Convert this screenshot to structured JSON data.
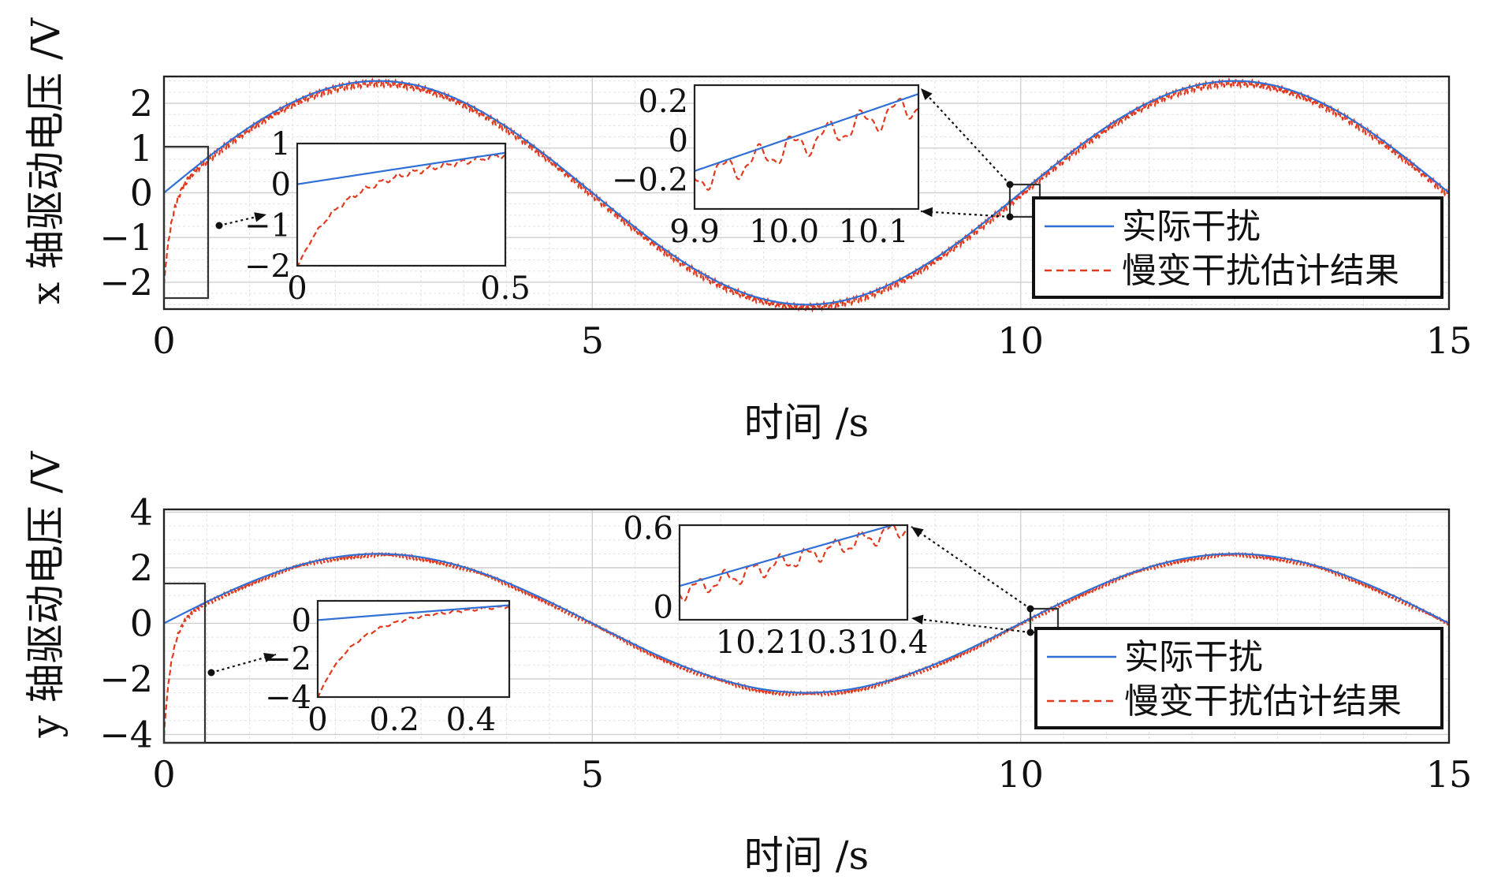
{
  "chart_data": [
    {
      "type": "line",
      "xlabel": "时间 /s",
      "ylabel": "x 轴驱动电压 /V",
      "xlim": [
        0,
        15
      ],
      "ylim": [
        -2.6,
        2.6
      ],
      "xticks": [
        "0",
        "5",
        "10",
        "15"
      ],
      "yticks": [
        "−2",
        "−1",
        "0",
        "1",
        "2"
      ],
      "grid": true,
      "legend_position": "lower-right",
      "series": [
        {
          "name": "实际干扰",
          "color": "#2f6fd6",
          "style": "solid",
          "function": "2.5*sin(2*pi*t/10)"
        },
        {
          "name": "慢变干扰估计结果",
          "color": "#e23a1e",
          "style": "dashed",
          "function": "estimate: converges from about -2 at t=0, then tracks 实际干扰 with small ripple",
          "initial_value": -2.0
        }
      ],
      "insets": [
        {
          "xlim": [
            0,
            0.5
          ],
          "ylim": [
            -2,
            1
          ],
          "xticks": [
            "0",
            "0.5"
          ],
          "yticks": [
            "−2",
            "−1",
            "0",
            "1"
          ]
        },
        {
          "xlim": [
            9.9,
            10.15
          ],
          "ylim": [
            -0.35,
            0.28
          ],
          "xticks": [
            "9.9",
            "10.0",
            "10.1"
          ],
          "yticks": [
            "−0.2",
            "0",
            "0.2"
          ]
        }
      ]
    },
    {
      "type": "line",
      "xlabel": "时间 /s",
      "ylabel": "y 轴驱动电压 /V",
      "xlim": [
        0,
        15
      ],
      "ylim": [
        -4.3,
        4.1
      ],
      "xticks": [
        "0",
        "5",
        "10",
        "15"
      ],
      "yticks": [
        "−4",
        "−2",
        "0",
        "2",
        "4"
      ],
      "grid": true,
      "legend_position": "lower-right",
      "series": [
        {
          "name": "实际干扰",
          "color": "#2f6fd6",
          "style": "solid",
          "function": "2.5*sin(2*pi*t/10)"
        },
        {
          "name": "慢变干扰估计结果",
          "color": "#e23a1e",
          "style": "dashed",
          "function": "estimate: converges from about -4 at t=0, then tracks 实际干扰 with small ripple",
          "initial_value": -4.0
        }
      ],
      "insets": [
        {
          "xlim": [
            0,
            0.5
          ],
          "ylim": [
            -4,
            1
          ],
          "xticks": [
            "0",
            "0.2",
            "0.4"
          ],
          "yticks": [
            "−4",
            "−2",
            "0"
          ]
        },
        {
          "xlim": [
            10.1,
            10.42
          ],
          "ylim": [
            -0.1,
            0.62
          ],
          "xticks": [
            "10.2",
            "10.3",
            "10.4"
          ],
          "yticks": [
            "0",
            "0.6"
          ]
        }
      ]
    }
  ]
}
